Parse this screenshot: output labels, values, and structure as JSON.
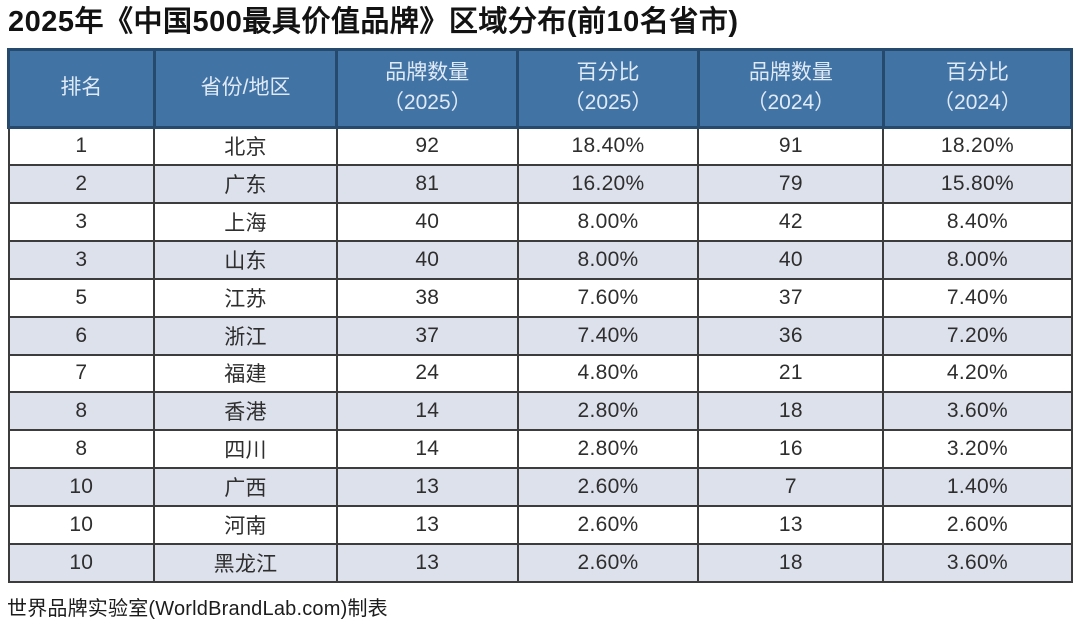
{
  "title": "2025年《中国500最具价值品牌》区域分布(前10名省市)",
  "footer": "世界品牌实验室(WorldBrandLab.com)制表",
  "colors": {
    "header_bg": "#4273a5",
    "header_border": "#26496e",
    "header_text": "#dfeaf6",
    "row_alt_bg": "#dde1ec",
    "body_border": "#3c3c3c",
    "body_text": "#2e2e2e",
    "title_text": "#121212"
  },
  "chart_data": {
    "type": "table",
    "title": "2025年《中国500最具价值品牌》区域分布(前10名省市)",
    "columns": [
      {
        "line1": "排名",
        "line2": ""
      },
      {
        "line1": "省份/地区",
        "line2": ""
      },
      {
        "line1": "品牌数量",
        "line2": "（2025）"
      },
      {
        "line1": "百分比",
        "line2": "（2025）"
      },
      {
        "line1": "品牌数量",
        "line2": "（2024）"
      },
      {
        "line1": "百分比",
        "line2": "（2024）"
      }
    ],
    "rows": [
      [
        "1",
        "北京",
        "92",
        "18.40%",
        "91",
        "18.20%"
      ],
      [
        "2",
        "广东",
        "81",
        "16.20%",
        "79",
        "15.80%"
      ],
      [
        "3",
        "上海",
        "40",
        "8.00%",
        "42",
        "8.40%"
      ],
      [
        "3",
        "山东",
        "40",
        "8.00%",
        "40",
        "8.00%"
      ],
      [
        "5",
        "江苏",
        "38",
        "7.60%",
        "37",
        "7.40%"
      ],
      [
        "6",
        "浙江",
        "37",
        "7.40%",
        "36",
        "7.20%"
      ],
      [
        "7",
        "福建",
        "24",
        "4.80%",
        "21",
        "4.20%"
      ],
      [
        "8",
        "香港",
        "14",
        "2.80%",
        "18",
        "3.60%"
      ],
      [
        "8",
        "四川",
        "14",
        "2.80%",
        "16",
        "3.20%"
      ],
      [
        "10",
        "广西",
        "13",
        "2.60%",
        "7",
        "1.40%"
      ],
      [
        "10",
        "河南",
        "13",
        "2.60%",
        "13",
        "2.60%"
      ],
      [
        "10",
        "黑龙江",
        "13",
        "2.60%",
        "18",
        "3.60%"
      ]
    ],
    "source_note": "世界品牌实验室(WorldBrandLab.com)制表"
  }
}
